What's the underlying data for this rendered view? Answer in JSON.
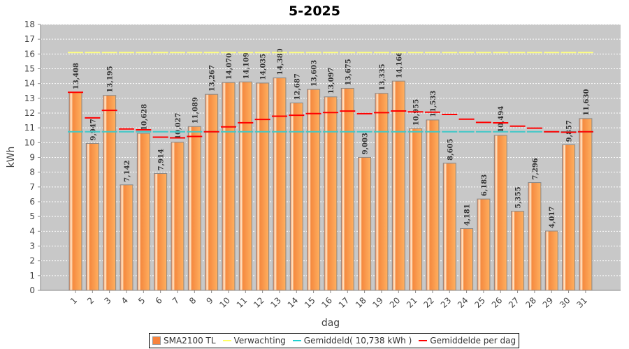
{
  "chart_data": {
    "type": "bar",
    "title": "5-2025",
    "xlabel": "dag",
    "ylabel": "kWh",
    "ylim": [
      0,
      18
    ],
    "yticks": [
      "0",
      "1",
      "2",
      "3",
      "4",
      "5",
      "6",
      "7",
      "8",
      "9",
      "10",
      "11",
      "12",
      "13",
      "14",
      "15",
      "16",
      "17",
      "18"
    ],
    "categories": [
      "1",
      "2",
      "3",
      "4",
      "5",
      "6",
      "7",
      "8",
      "9",
      "10",
      "11",
      "12",
      "13",
      "14",
      "15",
      "16",
      "17",
      "18",
      "19",
      "20",
      "21",
      "22",
      "23",
      "24",
      "25",
      "26",
      "27",
      "28",
      "29",
      "30",
      "31"
    ],
    "series": [
      {
        "name": "SMA2100 TL",
        "type": "bar",
        "color": "#f7833d",
        "values": [
          13.408,
          9.947,
          13.195,
          7.142,
          10.628,
          7.914,
          10.027,
          11.089,
          13.267,
          14.07,
          14.109,
          14.035,
          14.38,
          12.687,
          13.603,
          13.097,
          13.675,
          9.003,
          13.335,
          14.166,
          10.955,
          11.533,
          8.605,
          4.181,
          6.183,
          10.494,
          5.355,
          7.296,
          4.017,
          9.857,
          11.63
        ],
        "labels": [
          "13,408",
          "9,947",
          "13,195",
          "7,142",
          "10,628",
          "7,914",
          "10,027",
          "11,089",
          "13,267",
          "14,070",
          "14,109",
          "14,035",
          "14,380",
          "12,687",
          "13,603",
          "13,097",
          "13,675",
          "9,003",
          "13,335",
          "14,166",
          "10,955",
          "11,533",
          "8,605",
          "4,181",
          "6,183",
          "10,494",
          "5,355",
          "7,296",
          "4,017",
          "9,857",
          "11,630"
        ]
      },
      {
        "name": "Verwachting",
        "type": "line",
        "color": "#ffff80",
        "value": 16.1
      },
      {
        "name": "Gemiddeld( 10,738 kWh )",
        "type": "line",
        "color": "#40c8c8",
        "value": 10.738
      },
      {
        "name": "Gemiddelde per dag",
        "type": "step",
        "color": "#ff0000",
        "values": [
          13.408,
          11.678,
          12.183,
          10.923,
          10.864,
          10.372,
          10.323,
          10.419,
          10.735,
          11.069,
          11.345,
          11.569,
          11.785,
          11.85,
          11.967,
          12.037,
          12.134,
          11.96,
          12.032,
          12.139,
          12.083,
          12.057,
          11.907,
          11.585,
          11.369,
          11.336,
          11.114,
          10.978,
          10.738,
          10.708,
          10.738
        ]
      }
    ],
    "grid": true,
    "legend_position": "bottom"
  }
}
